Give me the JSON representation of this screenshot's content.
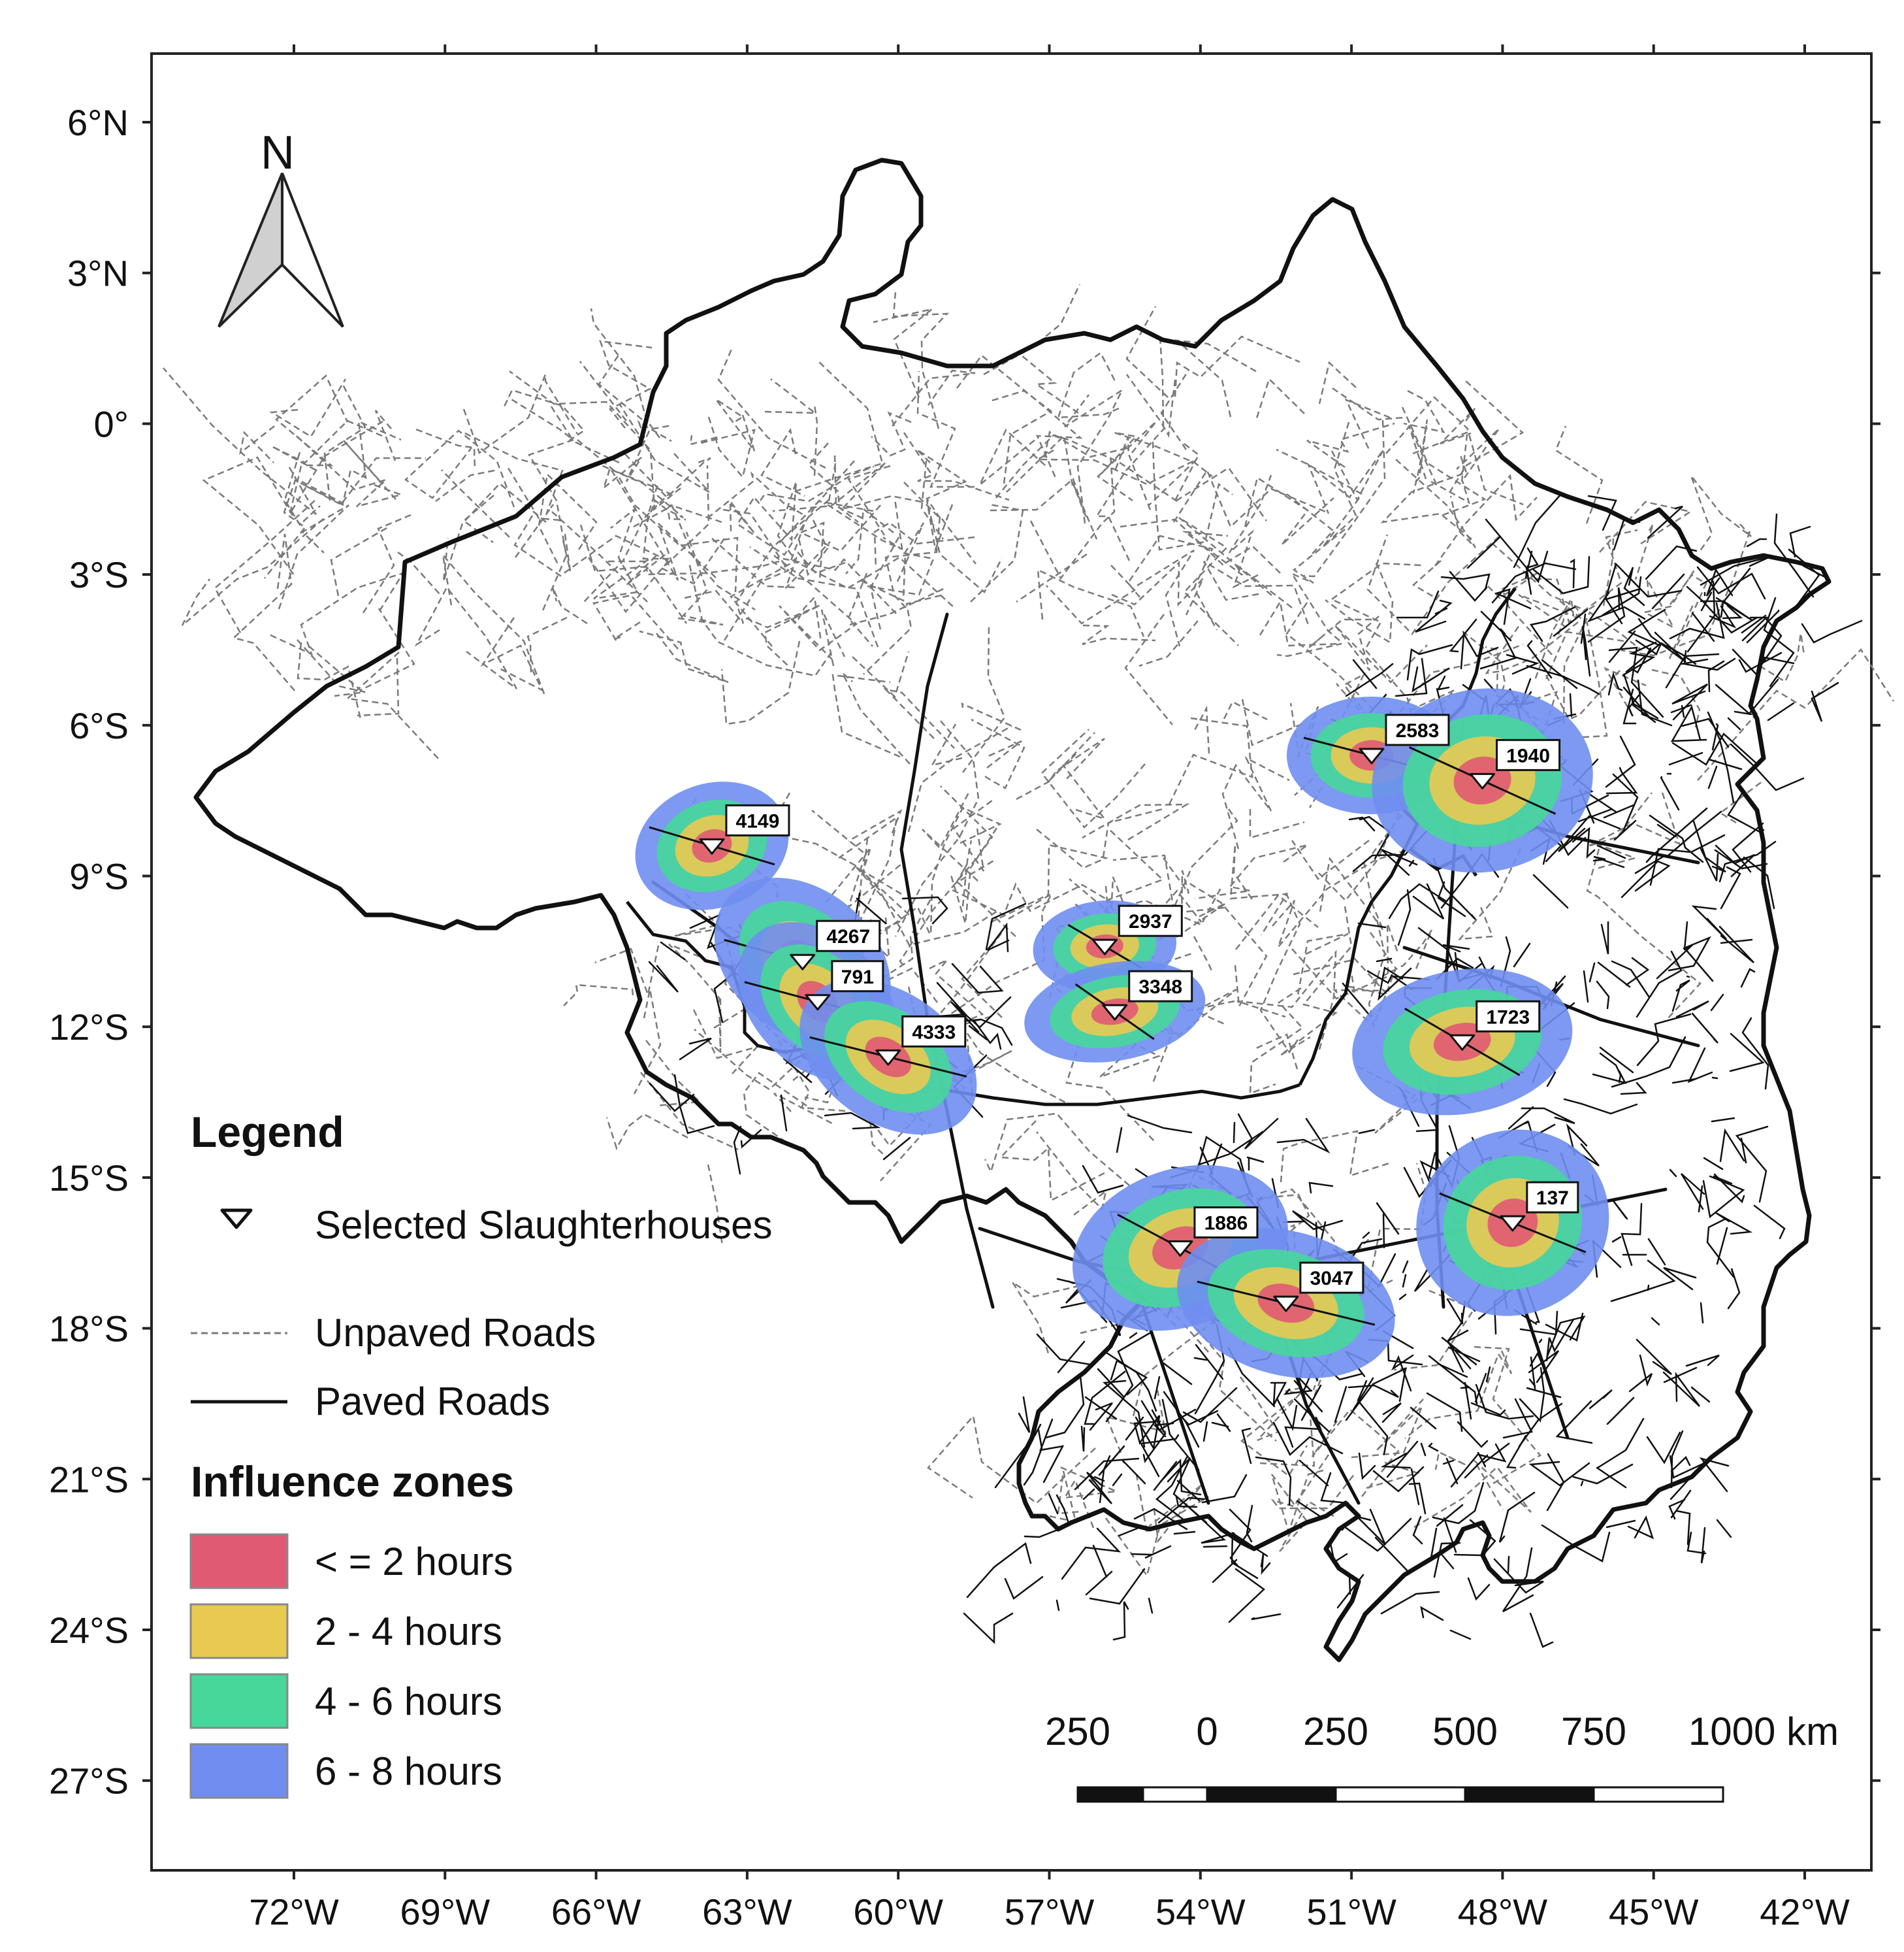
{
  "map": {
    "north_label": "N",
    "y_ticks": [
      {
        "lat": 6,
        "label": "6°N"
      },
      {
        "lat": 3,
        "label": "3°N"
      },
      {
        "lat": 0,
        "label": "0°"
      },
      {
        "lat": -3,
        "label": "3°S"
      },
      {
        "lat": -6,
        "label": "6°S"
      },
      {
        "lat": -9,
        "label": "9°S"
      },
      {
        "lat": -12,
        "label": "12°S"
      },
      {
        "lat": -15,
        "label": "15°S"
      },
      {
        "lat": -18,
        "label": "18°S"
      },
      {
        "lat": -21,
        "label": "21°S"
      },
      {
        "lat": -24,
        "label": "24°S"
      },
      {
        "lat": -27,
        "label": "27°S"
      }
    ],
    "x_ticks": [
      {
        "lon": -72,
        "label": "72°W"
      },
      {
        "lon": -69,
        "label": "69°W"
      },
      {
        "lon": -66,
        "label": "66°W"
      },
      {
        "lon": -63,
        "label": "63°W"
      },
      {
        "lon": -60,
        "label": "60°W"
      },
      {
        "lon": -57,
        "label": "57°W"
      },
      {
        "lon": -54,
        "label": "54°W"
      },
      {
        "lon": -51,
        "label": "51°W"
      },
      {
        "lon": -48,
        "label": "48°W"
      },
      {
        "lon": -45,
        "label": "45°W"
      },
      {
        "lon": -42,
        "label": "42°W"
      }
    ],
    "slaughterhouses": [
      {
        "id": "4149",
        "lon": -63.7,
        "lat": -8.4
      },
      {
        "id": "4267",
        "lon": -61.9,
        "lat": -10.7
      },
      {
        "id": "791",
        "lon": -61.6,
        "lat": -11.5
      },
      {
        "id": "4333",
        "lon": -60.2,
        "lat": -12.6
      },
      {
        "id": "2937",
        "lon": -55.9,
        "lat": -10.4
      },
      {
        "id": "3348",
        "lon": -55.7,
        "lat": -11.7
      },
      {
        "id": "2583",
        "lon": -50.6,
        "lat": -6.6
      },
      {
        "id": "1940",
        "lon": -48.4,
        "lat": -7.1
      },
      {
        "id": "1723",
        "lon": -48.8,
        "lat": -12.3
      },
      {
        "id": "137",
        "lon": -47.8,
        "lat": -15.9
      },
      {
        "id": "1886",
        "lon": -54.4,
        "lat": -16.4
      },
      {
        "id": "3047",
        "lon": -52.3,
        "lat": -17.5
      }
    ],
    "zone_colors": {
      "le2": "#e05a73",
      "h2_4": "#e9c952",
      "h4_6": "#46d79a",
      "h6_8": "#6f8ef0"
    }
  },
  "legend": {
    "title": "Legend",
    "slaughterhouses_label": "Selected Slaughterhouses",
    "unpaved_label": "Unpaved Roads",
    "paved_label": "Paved Roads",
    "zones_title": "Influence zones",
    "zones": [
      {
        "label": "< = 2 hours",
        "color": "#e05a73"
      },
      {
        "label": "2 - 4 hours",
        "color": "#e9c952"
      },
      {
        "label": "4 - 6 hours",
        "color": "#46d79a"
      },
      {
        "label": "6 - 8 hours",
        "color": "#6f8ef0"
      }
    ]
  },
  "scale_bar": {
    "labels": [
      "250",
      "0",
      "250",
      "500",
      "750",
      "1000 km"
    ]
  }
}
